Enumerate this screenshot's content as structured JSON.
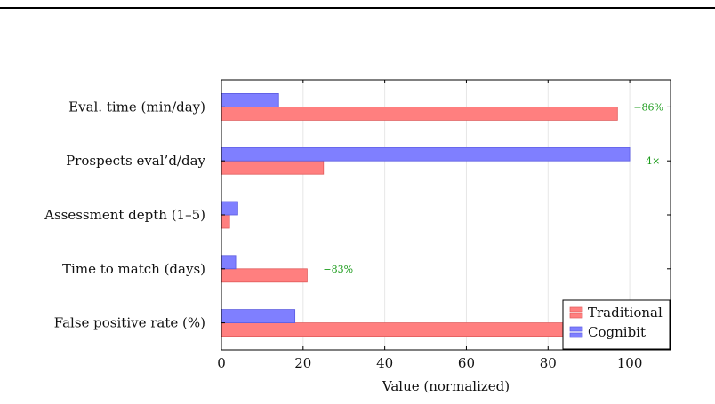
{
  "chart_data": {
    "type": "bar",
    "orientation": "horizontal",
    "categories": [
      "Eval. time (min/day)",
      "Prospects eval’d/day",
      "Assessment depth (1–5)",
      "Time to match (days)",
      "False positive rate (%)"
    ],
    "series": [
      {
        "name": "Traditional",
        "values": [
          97,
          25,
          2,
          21,
          90
        ],
        "color": "#ff7f7f",
        "stroke": "#e05a5a"
      },
      {
        "name": "Cognibit",
        "values": [
          14,
          100,
          4,
          3.5,
          18
        ],
        "color": "#7f7fff",
        "stroke": "#5a5ae0"
      }
    ],
    "xlabel": "Value (normalized)",
    "xlim": [
      0,
      110
    ],
    "xticks": [
      0,
      20,
      40,
      60,
      80,
      100
    ],
    "grid": "vertical",
    "legend": "bottom-right",
    "annotations": [
      {
        "category": "Eval. time (min/day)",
        "text": "−86%",
        "color": "#1a9b1a"
      },
      {
        "category": "Prospects eval’d/day",
        "text": "4×",
        "color": "#1a9b1a"
      },
      {
        "category": "Time to match (days)",
        "text": "−83%",
        "color": "#1a9b1a"
      }
    ]
  }
}
